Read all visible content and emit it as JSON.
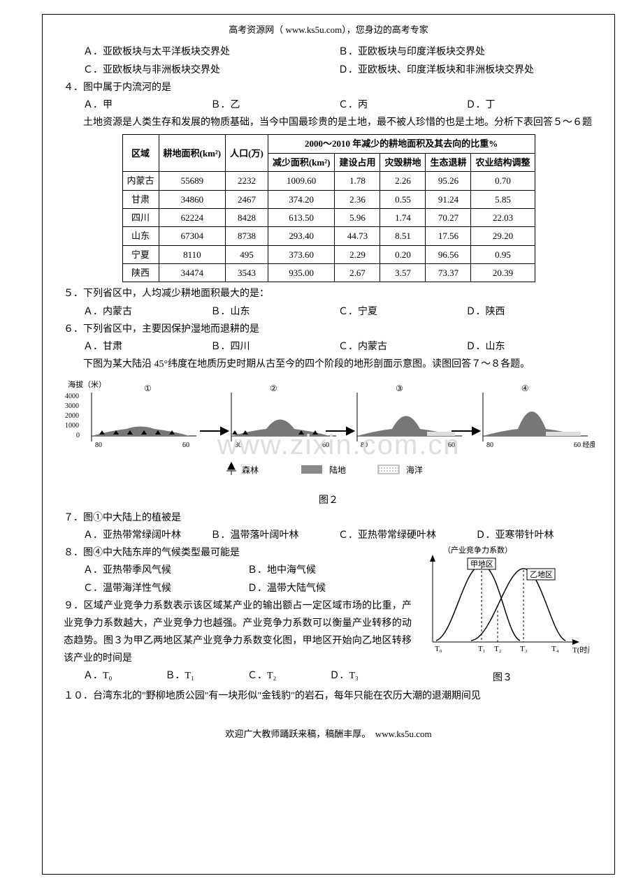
{
  "header": {
    "site": "高考资源网（ www.ks5u.com），您身边的高考专家"
  },
  "q_options_AD": {
    "A": "Ａ．亚欧板块与太平洋板块交界处",
    "B": "Ｂ．亚欧板块与印度洋板块交界处",
    "C": "Ｃ．亚欧板块与非洲板块交界处",
    "D": "Ｄ．亚欧板块、印度洋板块和非洲板块交界处"
  },
  "q4": {
    "stem": "４．图中属于内流河的是",
    "A": "Ａ．甲",
    "B": "Ｂ．乙",
    "C": "Ｃ．丙",
    "D": "Ｄ．丁"
  },
  "pass56": {
    "intro": "　　土地资源是人类生存和发展的物质基础，当今中国最珍贵的是土地，最不被人珍惜的也是土地。分析下表回答５～６题"
  },
  "table": {
    "head1": [
      "区域",
      "耕地面积(km²)",
      "人口(万)",
      "2000～2010 年减少的耕地面积及其去向的比重%"
    ],
    "head2": [
      "减少面积(km²)",
      "建设占用",
      "灾毁耕地",
      "生态退耕",
      "农业结构调整"
    ],
    "rows": [
      [
        "内蒙古",
        "55689",
        "2232",
        "1009.60",
        "1.78",
        "2.26",
        "95.26",
        "0.70"
      ],
      [
        "甘肃",
        "34860",
        "2467",
        "374.20",
        "2.36",
        "0.55",
        "91.24",
        "5.85"
      ],
      [
        "四川",
        "62224",
        "8428",
        "613.50",
        "5.96",
        "1.74",
        "70.27",
        "22.03"
      ],
      [
        "山东",
        "67304",
        "8738",
        "293.40",
        "44.73",
        "8.51",
        "17.56",
        "29.20"
      ],
      [
        "宁夏",
        "8110",
        "495",
        "373.60",
        "2.29",
        "0.20",
        "96.56",
        "0.95"
      ],
      [
        "陕西",
        "34474",
        "3543",
        "935.00",
        "2.67",
        "3.57",
        "73.37",
        "20.39"
      ]
    ]
  },
  "q5": {
    "stem": "５．下列省区中，人均减少耕地面积最大的是：",
    "A": "Ａ．内蒙古",
    "B": "Ｂ．山东",
    "C": "Ｃ．宁夏",
    "D": "Ｄ．陕西"
  },
  "q6": {
    "stem": "６．下列省区中，主要因保护湿地而退耕的是",
    "A": "Ａ．甘肃",
    "B": "Ｂ．四川",
    "C": "Ｃ．内蒙古",
    "D": "Ｄ．山东"
  },
  "pass78": {
    "intro": "　　下图为某大陆沿 45°纬度在地质历史时期从古至今的四个阶段的地形剖面示意图。读图回答７～８各题。"
  },
  "fig2": {
    "ylabel": "海拔（米）",
    "yticks": [
      "4000",
      "3000",
      "2000",
      "1000",
      "0"
    ],
    "xticks": [
      "80",
      "60",
      "80",
      "60",
      "80",
      "60",
      "80",
      "60 经度"
    ],
    "stages": [
      "①",
      "②",
      "③",
      "④"
    ],
    "legend": {
      "forest": "森林",
      "land": "陆地",
      "sea": "海洋"
    },
    "caption": "图２",
    "colors": {
      "land": "#808080",
      "sea": "#cccccc",
      "forest": "#000000",
      "axes": "#000000",
      "bg": "#ffffff"
    }
  },
  "q7": {
    "stem": "７．图①中大陆上的植被是",
    "A": "Ａ．亚热带常绿阔叶林",
    "B": "Ｂ．温带落叶阔叶林",
    "C": "Ｃ．亚热带常绿硬叶林",
    "D": "Ｄ．亚寒带针叶林"
  },
  "q8": {
    "stem": "８．图④中大陆东岸的气候类型最可能是",
    "A": "Ａ．亚热带季风气候",
    "B": "Ｂ．地中海气候",
    "C": "Ｃ．温带海洋性气候",
    "D": "Ｄ．温带大陆气候"
  },
  "q9": {
    "stem": "９．区域产业竞争力系数表示该区域某产业的输出额占一定区域市场的比重，产业竞争力系数越大，产业竞争力也越强。产业竞争力系数可以衡量产业转移的动态趋势。图３为甲乙两地区某产业竞争力系数变化图，甲地区开始向乙地区转移该产业的时间是",
    "A": "Ａ．T₀",
    "B": "Ｂ．T₁",
    "C": "Ｃ．T₂",
    "D": "Ｄ．T₃"
  },
  "fig3": {
    "ylabel": "（产业竞争力系数）",
    "xlabel": "T(时间)",
    "xticks": [
      "T₀",
      "T₁",
      "T₂",
      "T₃",
      "T₄"
    ],
    "labelA": "甲地区",
    "labelB": "乙地区",
    "caption": "图３",
    "colors": {
      "curve": "#000000",
      "axis": "#000000",
      "bg": "#ffffff",
      "dash": "#000000"
    }
  },
  "q10": {
    "stem": "１０．台湾东北的\"野柳地质公园\"有一块形似\"金钱豹\"的岩石，每年只能在农历大潮的退潮期间见"
  },
  "footer": "欢迎广大教师踊跃来稿，稿酬丰厚。　www.ks5u.com",
  "watermark": "www.zixin.com.cn"
}
